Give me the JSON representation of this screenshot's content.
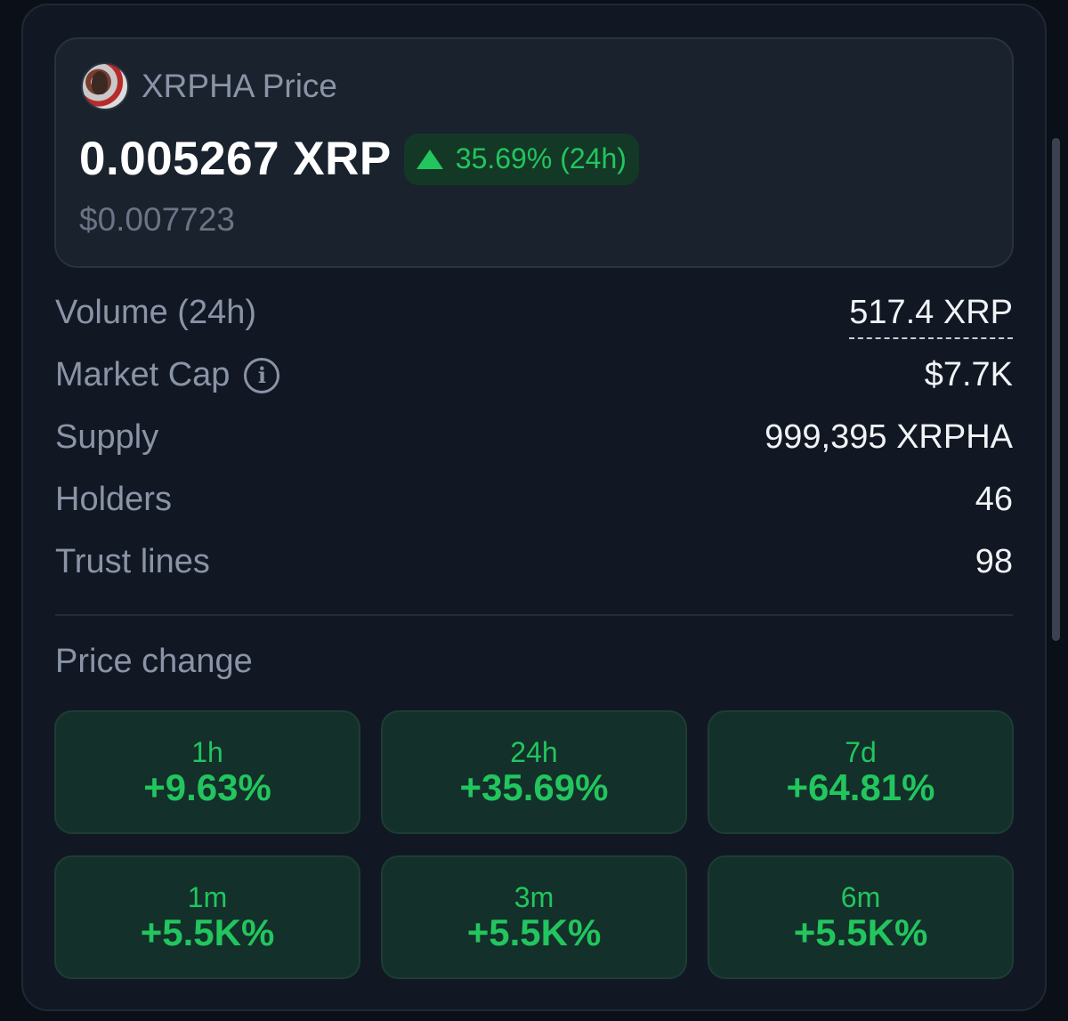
{
  "token": {
    "title": "XRPHA Price",
    "avatar_icon": "token-avatar",
    "price": "0.005267 XRP",
    "change_24h": "35.69% (24h)",
    "change_icon": "triangle-up-icon",
    "price_usd": "$0.007723"
  },
  "stats": [
    {
      "label": "Volume (24h)",
      "value": "517.4 XRP"
    },
    {
      "label": "Market Cap",
      "value": "$7.7K"
    },
    {
      "label": "Supply",
      "value": "999,395 XRPHA"
    },
    {
      "label": "Holders",
      "value": "46"
    },
    {
      "label": "Trust lines",
      "value": "98"
    }
  ],
  "price_change": {
    "title": "Price change",
    "tiles": [
      {
        "period": "1h",
        "value": "+9.63%"
      },
      {
        "period": "24h",
        "value": "+35.69%"
      },
      {
        "period": "7d",
        "value": "+64.81%"
      },
      {
        "period": "1m",
        "value": "+5.5K%"
      },
      {
        "period": "3m",
        "value": "+5.5K%"
      },
      {
        "period": "6m",
        "value": "+5.5K%"
      }
    ]
  },
  "colors": {
    "background": "#111824",
    "positive": "#22c55e",
    "tile_bg": "#13302a",
    "muted_text": "#8a94a6"
  }
}
